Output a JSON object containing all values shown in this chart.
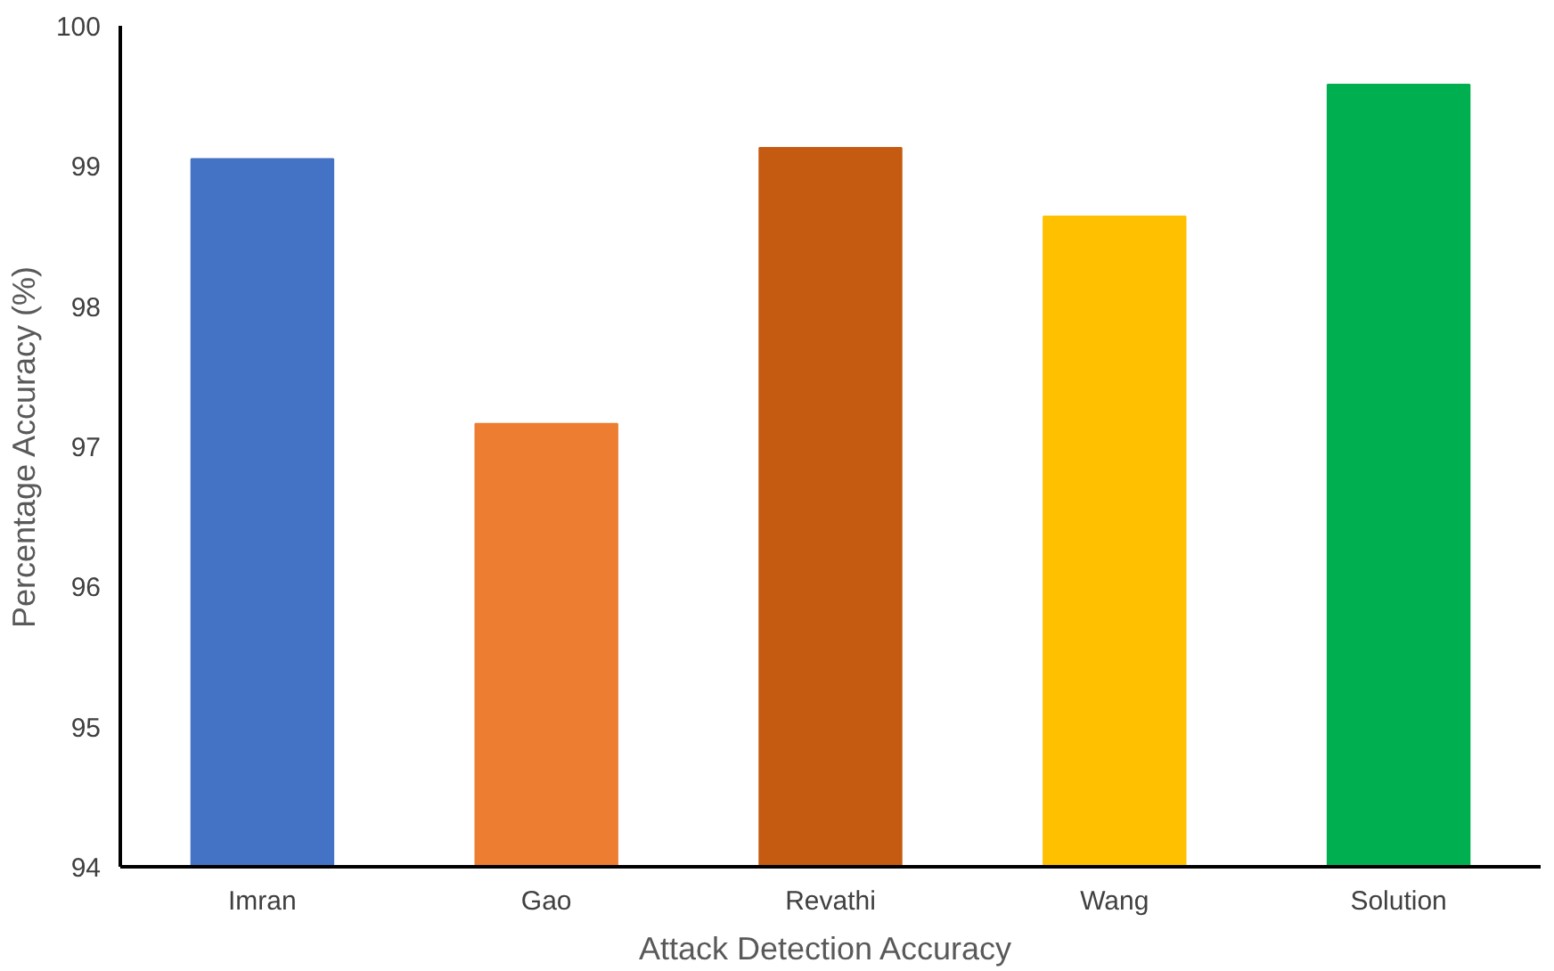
{
  "chart_data": {
    "type": "bar",
    "categories": [
      "Imran",
      "Gao",
      "Revathi",
      "Wang",
      "Solution"
    ],
    "values": [
      99.05,
      97.16,
      99.13,
      98.64,
      99.58
    ],
    "colors": [
      "#4472c4",
      "#ed7d31",
      "#c55a11",
      "#ffc000",
      "#00b050"
    ],
    "xlabel": "Attack Detection  Accuracy",
    "ylabel": "Percentage Accuracy (%)",
    "ylim": [
      94,
      100
    ],
    "yticks": [
      94,
      95,
      96,
      97,
      98,
      99,
      100
    ],
    "grid": false
  }
}
